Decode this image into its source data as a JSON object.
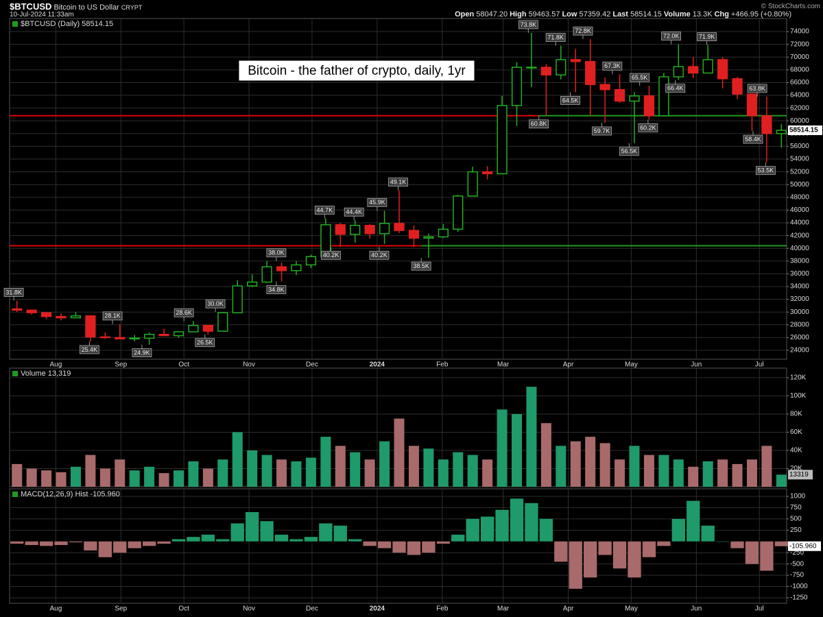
{
  "header": {
    "symbol": "$BTCUSD",
    "name": "Bitcoin to US Dollar",
    "exchange": "CRYPT",
    "date": "10-Jul-2024 11:33am",
    "quote": [
      {
        "label": "Open",
        "value": "58047.20"
      },
      {
        "label": "High",
        "value": "59463.57"
      },
      {
        "label": "Low",
        "value": "57359.42"
      },
      {
        "label": "Last",
        "value": "58514.15"
      },
      {
        "label": "Volume",
        "value": "13.3K"
      },
      {
        "label": "Chg",
        "value": "+466.95 (+0.80%)"
      }
    ],
    "credit": "© StockCharts.com"
  },
  "chart_data": [
    {
      "type": "candlestick",
      "label": "$BTCUSD (Daily) 58514.15",
      "title": "Bitcoin - the father of crypto, daily, 1yr",
      "up_color": "#22b022",
      "down_color": "#e02020",
      "x": [
        3.5,
        10.5,
        17.5,
        24.5,
        31.5,
        38.5,
        45.5,
        52.5,
        59.5,
        66.5,
        73.5,
        80.5,
        87.5,
        94.5,
        101.5,
        108.5,
        115.5,
        122.5,
        129.5,
        136.5,
        143.5,
        150.5,
        157.5,
        164.5,
        171.5,
        178.5,
        185.5,
        192.5,
        199.5,
        206.5,
        213.5,
        220.5,
        227.5,
        234.5,
        241.5,
        248.5,
        255.5,
        262.5,
        269.5,
        276.5,
        283.5,
        290.5,
        297.5,
        304.5,
        311.5,
        318.5,
        325.5,
        332.5,
        339.5,
        346.5,
        353.5,
        360.5,
        367.5
      ],
      "open": [
        30500,
        30300,
        29900,
        29300,
        29100,
        29400,
        26100,
        26000,
        25800,
        25900,
        26500,
        26300,
        26900,
        27900,
        27000,
        29900,
        34100,
        34700,
        37100,
        36500,
        37400,
        38700,
        43700,
        42200,
        43600,
        42300,
        43900,
        42800,
        41600,
        41800,
        43000,
        48200,
        52000,
        51700,
        62400,
        68400,
        68400,
        67200,
        69600,
        69300,
        65700,
        64900,
        63100,
        63900,
        60800,
        66900,
        68500,
        67500,
        69600,
        66600,
        64200,
        60800,
        58000
      ],
      "high": [
        31800,
        30400,
        29900,
        29800,
        30000,
        29500,
        26800,
        28100,
        26400,
        26800,
        27400,
        27000,
        28600,
        28000,
        30000,
        35000,
        35900,
        38000,
        37800,
        38000,
        39000,
        44700,
        44000,
        44400,
        43800,
        45900,
        49100,
        43600,
        42300,
        43800,
        48400,
        52800,
        52900,
        63900,
        69200,
        73800,
        68900,
        71800,
        71300,
        72800,
        66800,
        67300,
        64500,
        65500,
        67500,
        72000,
        70000,
        71900,
        70000,
        66900,
        64200,
        63800,
        59500
      ],
      "low": [
        30000,
        29600,
        28900,
        28700,
        29000,
        25400,
        25800,
        25800,
        25400,
        24900,
        26400,
        26000,
        26900,
        26500,
        26900,
        29800,
        33900,
        34600,
        34800,
        35800,
        36900,
        38700,
        40200,
        40900,
        41500,
        40700,
        42400,
        40200,
        38500,
        41600,
        42600,
        48200,
        50800,
        51600,
        59200,
        65300,
        60800,
        66500,
        64500,
        60800,
        59700,
        62800,
        56500,
        60200,
        60700,
        66400,
        66700,
        67500,
        65100,
        63400,
        58400,
        53500,
        55800
      ],
      "close": [
        30300,
        29900,
        29300,
        29100,
        29400,
        26100,
        26000,
        25800,
        25900,
        26500,
        26300,
        26900,
        27900,
        27000,
        29900,
        34100,
        34700,
        37100,
        36500,
        37400,
        38700,
        43700,
        42200,
        43600,
        42300,
        43900,
        42800,
        41600,
        41800,
        43000,
        48200,
        52000,
        51700,
        62400,
        68400,
        68400,
        67200,
        69600,
        69300,
        65700,
        64900,
        63100,
        63900,
        60800,
        66900,
        68500,
        67500,
        69600,
        66600,
        64200,
        60800,
        58000,
        58514.15
      ],
      "xlim": [
        0,
        370
      ],
      "xticks": [
        {
          "value": 22,
          "label": "Aug"
        },
        {
          "value": 53,
          "label": "Sep"
        },
        {
          "value": 83,
          "label": "Oct"
        },
        {
          "value": 114,
          "label": "Nov"
        },
        {
          "value": 144,
          "label": "Dec"
        },
        {
          "value": 175,
          "label": "2024"
        },
        {
          "value": 206,
          "label": "Feb"
        },
        {
          "value": 235,
          "label": "Mar"
        },
        {
          "value": 266,
          "label": "Apr"
        },
        {
          "value": 296,
          "label": "May"
        },
        {
          "value": 327,
          "label": "Jun"
        },
        {
          "value": 357,
          "label": "Jul"
        }
      ],
      "ylim": [
        22600,
        76050
      ],
      "yticks": [
        24000,
        26000,
        28000,
        30000,
        32000,
        34000,
        36000,
        38000,
        40000,
        42000,
        44000,
        46000,
        48000,
        50000,
        52000,
        54000,
        56000,
        58000,
        60000,
        62000,
        64000,
        66000,
        68000,
        70000,
        72000,
        74000
      ],
      "grid": true,
      "last": 58514.15,
      "levels": [
        {
          "value": 60800,
          "x": 252,
          "colors": [
            "#e00000",
            "#1f9a1f"
          ]
        },
        {
          "value": 40400,
          "x": 196,
          "colors": [
            "#e00000",
            "#1f9a1f"
          ]
        }
      ],
      "annotations": [
        {
          "x": 2,
          "value": 31800,
          "label": "31.8K"
        },
        {
          "x": 49,
          "value": 28100,
          "label": "28.1K"
        },
        {
          "x": 38,
          "value": 25400,
          "label": "25.4K"
        },
        {
          "x": 63,
          "value": 24900,
          "label": "24.9K"
        },
        {
          "x": 83,
          "value": 28600,
          "label": "28.6K"
        },
        {
          "x": 93,
          "value": 26500,
          "label": "26.5K"
        },
        {
          "x": 98,
          "value": 30000,
          "label": "30.0K"
        },
        {
          "x": 127,
          "value": 38000,
          "label": "38.0K"
        },
        {
          "x": 127,
          "value": 34800,
          "label": "34.8K"
        },
        {
          "x": 150,
          "value": 44700,
          "label": "44.7K"
        },
        {
          "x": 153,
          "value": 40200,
          "label": "40.2K"
        },
        {
          "x": 164,
          "value": 44400,
          "label": "44.4K"
        },
        {
          "x": 175,
          "value": 45900,
          "label": "45.9K"
        },
        {
          "x": 176,
          "value": 40200,
          "label": "40.2K"
        },
        {
          "x": 185,
          "value": 49100,
          "label": "49.1K"
        },
        {
          "x": 196,
          "value": 38500,
          "label": "38.5K"
        },
        {
          "x": 247,
          "value": 73800,
          "label": "73.8K"
        },
        {
          "x": 260,
          "value": 71800,
          "label": "71.8K"
        },
        {
          "x": 273,
          "value": 72800,
          "label": "72.8K"
        },
        {
          "x": 252,
          "value": 60800,
          "label": "60.8K"
        },
        {
          "x": 267,
          "value": 64500,
          "label": "64.5K"
        },
        {
          "x": 287,
          "value": 67300,
          "label": "67.3K"
        },
        {
          "x": 282,
          "value": 59700,
          "label": "59.7K"
        },
        {
          "x": 300,
          "value": 65500,
          "label": "65.5K"
        },
        {
          "x": 295,
          "value": 56500,
          "label": "56.5K"
        },
        {
          "x": 304,
          "value": 60200,
          "label": "60.2K"
        },
        {
          "x": 315,
          "value": 72000,
          "label": "72.0K"
        },
        {
          "x": 317,
          "value": 66400,
          "label": "66.4K"
        },
        {
          "x": 332,
          "value": 71900,
          "label": "71.9K"
        },
        {
          "x": 356,
          "value": 63800,
          "label": "63.8K"
        },
        {
          "x": 354,
          "value": 58400,
          "label": "58.4K"
        },
        {
          "x": 360,
          "value": 53500,
          "label": "53.5K"
        }
      ]
    },
    {
      "type": "bar",
      "label": "Volume 13,319",
      "up_color": "#1f9a6a",
      "down_color": "#a86a6a",
      "values": [
        25000,
        20000,
        18000,
        16000,
        22000,
        35000,
        20000,
        30000,
        18000,
        22000,
        15000,
        18000,
        28000,
        20000,
        30000,
        60000,
        40000,
        35000,
        30000,
        28000,
        32000,
        55000,
        45000,
        38000,
        30000,
        50000,
        75000,
        45000,
        42000,
        30000,
        38000,
        35000,
        30000,
        85000,
        80000,
        110000,
        70000,
        45000,
        50000,
        55000,
        48000,
        30000,
        45000,
        35000,
        35000,
        30000,
        22000,
        28000,
        30000,
        25000,
        30000,
        45000,
        13319
      ],
      "ylim": [
        0,
        130500
      ],
      "yticks": [
        {
          "value": 20000,
          "label": "20K"
        },
        {
          "value": 40000,
          "label": "40K"
        },
        {
          "value": 60000,
          "label": "60K"
        },
        {
          "value": 80000,
          "label": "80K"
        },
        {
          "value": 100000,
          "label": "100K"
        },
        {
          "value": 120000,
          "label": "120K"
        }
      ],
      "grid": true,
      "last": 13319
    },
    {
      "type": "histogram",
      "label": "MACD(12,26,9) Hist -105.960",
      "up_color": "#1f9a6a",
      "down_color": "#a86a6a",
      "values": [
        -50,
        -80,
        -100,
        -80,
        -20,
        -200,
        -350,
        -250,
        -150,
        -100,
        -50,
        50,
        100,
        150,
        50,
        400,
        650,
        450,
        150,
        50,
        100,
        400,
        350,
        50,
        -100,
        -150,
        -250,
        -300,
        -250,
        -50,
        150,
        500,
        550,
        700,
        950,
        850,
        500,
        -450,
        -1050,
        -800,
        -300,
        -600,
        -800,
        -350,
        -100,
        500,
        900,
        350,
        0,
        -150,
        -500,
        -650,
        -105.96
      ],
      "ylim": [
        -1372,
        1167
      ],
      "yticks": [
        -1250,
        -1000,
        -750,
        -500,
        -250,
        250,
        500,
        750,
        1000
      ],
      "grid": true,
      "last": {
        "value": -105.96,
        "label": "-105.960"
      }
    }
  ]
}
